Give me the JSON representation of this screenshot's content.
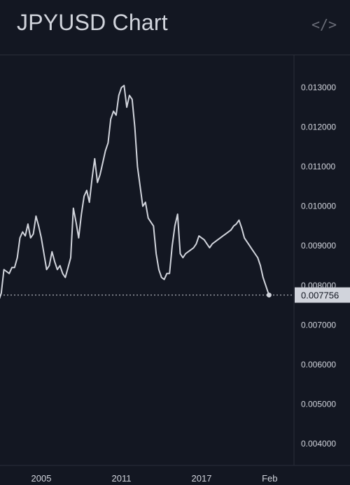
{
  "header": {
    "title": "JPYUSD Chart",
    "embed_icon": "code-icon",
    "embed_glyph": "</>"
  },
  "colors": {
    "background": "#131722",
    "line": "#d1d4dc",
    "grid_border": "#2a2e39",
    "price_label_bg": "#d1d4dc",
    "price_label_text": "#131722"
  },
  "chart_data": {
    "type": "line",
    "title": "JPYUSD Chart",
    "xlabel": "",
    "ylabel": "",
    "ylim": [
      0.0036,
      0.0134
    ],
    "xlim": [
      2001.8,
      2023.3
    ],
    "y_ticks": [
      "0.013000",
      "0.012000",
      "0.011000",
      "0.010000",
      "0.009000",
      "0.008000",
      "0.007000",
      "0.006000",
      "0.005000",
      "0.004000"
    ],
    "y_tick_values": [
      0.013,
      0.012,
      0.011,
      0.01,
      0.009,
      0.008,
      0.007,
      0.006,
      0.005,
      0.004
    ],
    "x_ticks": [
      "2005",
      "2011",
      "2017",
      "Feb"
    ],
    "x_tick_values": [
      2005,
      2011,
      2017,
      2022.1
    ],
    "last_price_label": "0.007756",
    "last_value": 0.007756,
    "grid": false,
    "series": [
      {
        "x": [
          2001.8,
          2002.0,
          2002.2,
          2002.4,
          2002.6,
          2002.8,
          2003.0,
          2003.2,
          2003.4,
          2003.6,
          2003.8,
          2004.0,
          2004.2,
          2004.4,
          2004.6,
          2004.8,
          2005.0,
          2005.2,
          2005.4,
          2005.6,
          2005.8,
          2006.0,
          2006.2,
          2006.4,
          2006.6,
          2006.8,
          2007.0,
          2007.2,
          2007.4,
          2007.6,
          2007.8,
          2008.0,
          2008.2,
          2008.4,
          2008.6,
          2008.8,
          2009.0,
          2009.2,
          2009.4,
          2009.6,
          2009.8,
          2010.0,
          2010.2,
          2010.4,
          2010.6,
          2010.8,
          2011.0,
          2011.2,
          2011.4,
          2011.6,
          2011.8,
          2012.0,
          2012.2,
          2012.4,
          2012.6,
          2012.8,
          2013.0,
          2013.2,
          2013.4,
          2013.6,
          2013.8,
          2014.0,
          2014.2,
          2014.4,
          2014.6,
          2014.8,
          2015.0,
          2015.2,
          2015.4,
          2015.6,
          2015.8,
          2016.0,
          2016.2,
          2016.4,
          2016.6,
          2016.8,
          2017.0,
          2017.2,
          2017.4,
          2017.6,
          2017.8,
          2018.0,
          2018.2,
          2018.4,
          2018.6,
          2018.8,
          2019.0,
          2019.2,
          2019.4,
          2019.6,
          2019.8,
          2020.0,
          2020.2,
          2020.4,
          2020.6,
          2020.8,
          2021.0,
          2021.2,
          2021.4,
          2021.6,
          2021.8,
          2022.0,
          2022.05
        ],
        "y": [
          0.0076,
          0.0078,
          0.0084,
          0.00835,
          0.0083,
          0.00845,
          0.00845,
          0.0087,
          0.0092,
          0.00935,
          0.00925,
          0.00955,
          0.0092,
          0.0093,
          0.00975,
          0.0095,
          0.0092,
          0.0088,
          0.0084,
          0.0085,
          0.00885,
          0.0086,
          0.0084,
          0.0085,
          0.0083,
          0.0082,
          0.00845,
          0.0087,
          0.00995,
          0.0096,
          0.0092,
          0.0098,
          0.01025,
          0.0104,
          0.0101,
          0.0107,
          0.0112,
          0.0106,
          0.0108,
          0.0111,
          0.0114,
          0.0116,
          0.0122,
          0.0124,
          0.0123,
          0.0128,
          0.013,
          0.01305,
          0.0125,
          0.0128,
          0.0127,
          0.012,
          0.011,
          0.0105,
          0.01,
          0.0101,
          0.0097,
          0.0096,
          0.0095,
          0.0088,
          0.0084,
          0.0082,
          0.00815,
          0.0083,
          0.0083,
          0.009,
          0.0095,
          0.0098,
          0.0088,
          0.0087,
          0.0088,
          0.00885,
          0.0089,
          0.00895,
          0.00905,
          0.00925,
          0.0092,
          0.00915,
          0.00905,
          0.00895,
          0.00905,
          0.0091,
          0.00915,
          0.0092,
          0.00925,
          0.0093,
          0.00935,
          0.0094,
          0.0095,
          0.00955,
          0.00965,
          0.00945,
          0.0092,
          0.0091,
          0.009,
          0.0089,
          0.0088,
          0.0087,
          0.0085,
          0.0082,
          0.008,
          0.0078,
          0.007756
        ]
      }
    ]
  }
}
